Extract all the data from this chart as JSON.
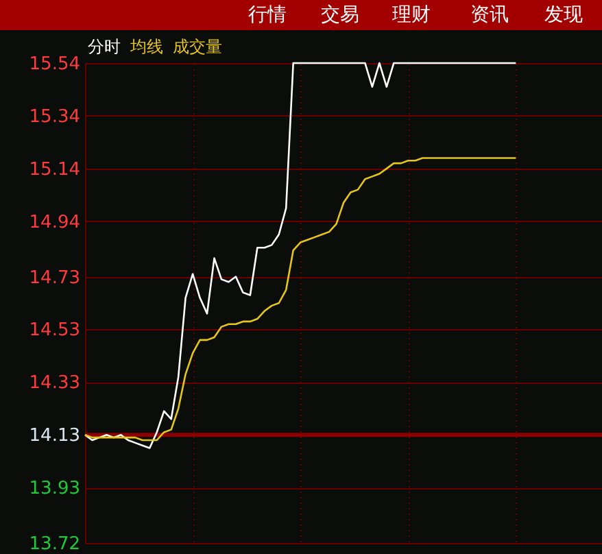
{
  "chart_data": {
    "type": "line",
    "annotations": [
      "行情",
      "交易",
      "理财",
      "资讯",
      "发现",
      "成交量"
    ],
    "categories": [
      null,
      null,
      null,
      null,
      null,
      null,
      null,
      null,
      null,
      null,
      null,
      null,
      null,
      null,
      null,
      null,
      null,
      null,
      null,
      null,
      null,
      null,
      null,
      null,
      null,
      null,
      null,
      null,
      null,
      null,
      null,
      null,
      null,
      null,
      null,
      null,
      null,
      null,
      null,
      null,
      null,
      null,
      null,
      null,
      null,
      null,
      null,
      null,
      null,
      null,
      null,
      null,
      null,
      null,
      null,
      null,
      null,
      null,
      null,
      null,
      null,
      null,
      null,
      null,
      null,
      null,
      null,
      null,
      null,
      null,
      null,
      null,
      null
    ],
    "series": [
      {
        "name": "分时",
        "color": "#ffffff",
        "values": [
          14.13,
          14.11,
          14.12,
          14.13,
          14.12,
          14.13,
          14.11,
          14.1,
          14.09,
          14.08,
          14.14,
          14.22,
          14.19,
          14.35,
          14.65,
          14.74,
          14.65,
          14.59,
          14.8,
          14.72,
          14.71,
          14.73,
          14.67,
          14.66,
          14.84,
          14.84,
          14.85,
          14.89,
          14.99,
          15.54,
          15.54,
          15.54,
          15.54,
          15.54,
          15.54,
          15.54,
          15.54,
          15.54,
          15.54,
          15.54,
          15.45,
          15.54,
          15.45,
          15.54,
          15.54,
          15.54,
          15.54,
          15.54,
          15.54,
          15.54,
          15.54,
          15.54,
          15.54,
          15.54,
          15.54,
          15.54,
          15.54,
          15.54,
          15.54,
          15.54,
          15.54,
          null,
          null,
          null,
          null,
          null,
          null,
          null,
          null,
          null,
          null,
          null,
          null
        ]
      },
      {
        "name": "均线",
        "color": "#e6c619",
        "values": [
          14.13,
          14.12,
          14.12,
          14.12,
          14.12,
          14.12,
          14.12,
          14.12,
          14.11,
          14.11,
          14.11,
          14.14,
          14.15,
          14.23,
          14.36,
          14.44,
          14.49,
          14.49,
          14.5,
          14.54,
          14.55,
          14.55,
          14.56,
          14.56,
          14.57,
          14.6,
          14.62,
          14.63,
          14.68,
          14.83,
          14.86,
          14.87,
          14.88,
          14.89,
          14.9,
          14.93,
          15.01,
          15.05,
          15.06,
          15.1,
          15.11,
          15.12,
          15.14,
          15.16,
          15.16,
          15.17,
          15.17,
          15.18,
          15.18,
          15.18,
          15.18,
          15.18,
          15.18,
          15.18,
          15.18,
          15.18,
          15.18,
          15.18,
          15.18,
          15.18,
          15.18,
          null,
          null,
          null,
          null,
          null,
          null,
          null,
          null,
          null,
          null,
          null,
          null
        ]
      }
    ],
    "ylim": [
      13.72,
      15.54
    ],
    "yticks": [
      13.72,
      13.93,
      14.13,
      14.33,
      14.53,
      14.73,
      14.94,
      15.14,
      15.34,
      15.54
    ],
    "ref_lines": [
      {
        "axis": "y",
        "value": 14.13,
        "color": "#8b0000"
      }
    ],
    "grid": true,
    "tick_labels": "y",
    "line_style": "solid"
  }
}
